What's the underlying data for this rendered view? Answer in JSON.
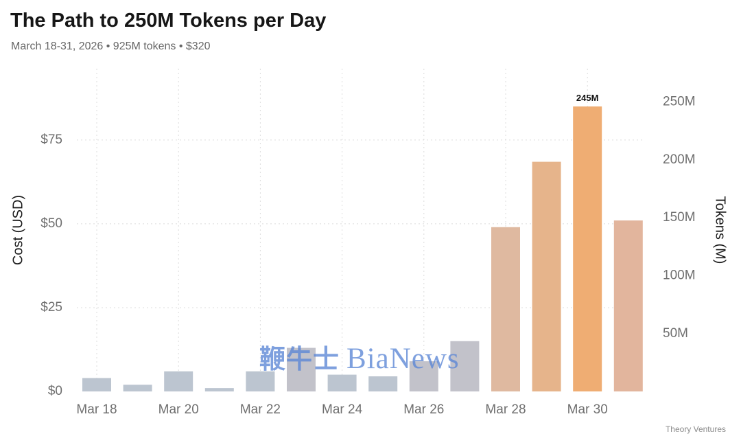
{
  "title": "The Path to 250M Tokens per Day",
  "subtitle": "March 18-31, 2026 • 925M tokens • $320",
  "credit": "Theory Ventures",
  "watermark": {
    "cjk": "鞭牛士",
    "latin": "BiaNews"
  },
  "chart_data": {
    "type": "bar",
    "categories": [
      "Mar 18",
      "Mar 19",
      "Mar 20",
      "Mar 21",
      "Mar 22",
      "Mar 23",
      "Mar 24",
      "Mar 25",
      "Mar 26",
      "Mar 27",
      "Mar 28",
      "Mar 29",
      "Mar 30",
      "Mar 31"
    ],
    "x_tick_labels": [
      "Mar 18",
      "Mar 20",
      "Mar 22",
      "Mar 24",
      "Mar 26",
      "Mar 28",
      "Mar 30"
    ],
    "series": [
      {
        "axis": "left",
        "values": [
          4,
          2,
          6,
          1,
          6,
          13,
          5,
          4.5,
          9,
          15,
          49,
          68.5,
          85,
          51
        ],
        "colors": [
          "#bcc5d0",
          "#bcc5d0",
          "#bcc5d0",
          "#bcc5d0",
          "#bcc5d0",
          "#c2c2ca",
          "#bcc5d0",
          "#bcc5d0",
          "#c2c2ca",
          "#c2c2ca",
          "#dfb9a0",
          "#e6b48b",
          "#efad73",
          "#e2b59d"
        ]
      }
    ],
    "ylabel": "Cost (USD)",
    "y2label": "Tokens (M)",
    "ylim": [
      0,
      90
    ],
    "yticks": [
      0,
      25,
      50,
      75
    ],
    "ytick_labels": [
      "$0",
      "$25",
      "$50",
      "$75"
    ],
    "y2lim": [
      0,
      265
    ],
    "y2ticks": [
      50,
      100,
      150,
      200,
      250
    ],
    "y2tick_labels": [
      "50M",
      "100M",
      "150M",
      "200M",
      "250M"
    ],
    "annotations": [
      {
        "category": "Mar 30",
        "text": "245M"
      }
    ],
    "grid": true
  }
}
